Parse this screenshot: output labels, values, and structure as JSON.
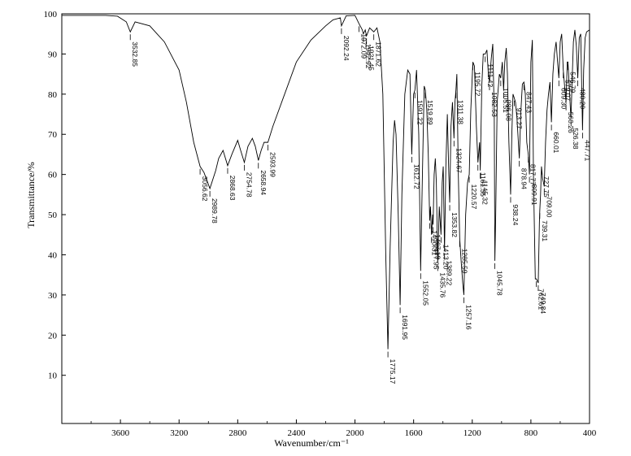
{
  "chart_data": {
    "type": "line",
    "title": "",
    "xlabel": "Wavenumber/cm⁻¹",
    "ylabel": "Transmittance/%",
    "xlim": [
      4000,
      400
    ],
    "ylim": [
      -2,
      100
    ],
    "x_ticks": [
      3600,
      3200,
      2800,
      2400,
      2000,
      1600,
      1200,
      800,
      400
    ],
    "y_ticks": [
      10,
      20,
      30,
      40,
      50,
      60,
      70,
      80,
      90,
      100
    ],
    "grid": false,
    "series": [
      {
        "points": [
          [
            4000,
            99.6
          ],
          [
            3700,
            99.6
          ],
          [
            3620,
            99.4
          ],
          [
            3560,
            98
          ],
          [
            3532.85,
            95.5
          ],
          [
            3500,
            98
          ],
          [
            3400,
            97
          ],
          [
            3300,
            93
          ],
          [
            3200,
            86
          ],
          [
            3150,
            78
          ],
          [
            3100,
            68
          ],
          [
            3056.62,
            62
          ],
          [
            3030,
            60.5
          ],
          [
            2989.78,
            56.5
          ],
          [
            2950,
            61
          ],
          [
            2930,
            64
          ],
          [
            2900,
            66
          ],
          [
            2868.63,
            62.2
          ],
          [
            2840,
            65
          ],
          [
            2800,
            68.5
          ],
          [
            2780,
            66
          ],
          [
            2754.78,
            63
          ],
          [
            2730,
            67
          ],
          [
            2700,
            69
          ],
          [
            2680,
            67
          ],
          [
            2658.94,
            63.5
          ],
          [
            2640,
            66
          ],
          [
            2620,
            68
          ],
          [
            2593.99,
            68
          ],
          [
            2560,
            72
          ],
          [
            2500,
            78
          ],
          [
            2400,
            88
          ],
          [
            2300,
            93.5
          ],
          [
            2200,
            97
          ],
          [
            2150,
            98.5
          ],
          [
            2100,
            99
          ],
          [
            2092.24,
            97
          ],
          [
            2060,
            99.5
          ],
          [
            2000,
            99.6
          ],
          [
            1972.09,
            97.5
          ],
          [
            1950,
            96
          ],
          [
            1942.92,
            95
          ],
          [
            1930,
            96
          ],
          [
            1921.45,
            94.5
          ],
          [
            1900,
            96.5
          ],
          [
            1871.62,
            95.5
          ],
          [
            1850,
            96.5
          ],
          [
            1830,
            93
          ],
          [
            1810,
            80
          ],
          [
            1790,
            40
          ],
          [
            1775.17,
            16.5
          ],
          [
            1760,
            42
          ],
          [
            1740,
            68
          ],
          [
            1730,
            73.5
          ],
          [
            1720,
            70
          ],
          [
            1705,
            50
          ],
          [
            1691.95,
            27.5
          ],
          [
            1680,
            55
          ],
          [
            1660,
            80
          ],
          [
            1640,
            86
          ],
          [
            1625,
            85
          ],
          [
            1612.72,
            65
          ],
          [
            1600,
            80
          ],
          [
            1591.22,
            81
          ],
          [
            1580,
            86
          ],
          [
            1565,
            70
          ],
          [
            1552.05,
            36
          ],
          [
            1540,
            60
          ],
          [
            1528,
            82
          ],
          [
            1519.89,
            81
          ],
          [
            1510,
            76
          ],
          [
            1500,
            65
          ],
          [
            1490.31,
            48.5
          ],
          [
            1485,
            52
          ],
          [
            1477.95,
            45
          ],
          [
            1470,
            50
          ],
          [
            1467.19,
            47.5
          ],
          [
            1460,
            60
          ],
          [
            1452,
            64
          ],
          [
            1445,
            58
          ],
          [
            1435.76,
            38
          ],
          [
            1425,
            52
          ],
          [
            1413.2,
            45
          ],
          [
            1405,
            58
          ],
          [
            1398,
            62
          ],
          [
            1389.22,
            41
          ],
          [
            1380,
            62
          ],
          [
            1370,
            75
          ],
          [
            1360,
            60
          ],
          [
            1353.82,
            53
          ],
          [
            1345,
            72
          ],
          [
            1335,
            78
          ],
          [
            1324.67,
            69
          ],
          [
            1318,
            78
          ],
          [
            1311.38,
            81
          ],
          [
            1305,
            85
          ],
          [
            1295,
            60
          ],
          [
            1285.59,
            44
          ],
          [
            1275,
            38
          ],
          [
            1265,
            33
          ],
          [
            1257.16,
            30
          ],
          [
            1245,
            50
          ],
          [
            1232,
            58
          ],
          [
            1220.57,
            60
          ],
          [
            1210,
            76
          ],
          [
            1195.72,
            88
          ],
          [
            1185,
            87
          ],
          [
            1172,
            72
          ],
          [
            1161.35,
            63
          ],
          [
            1150,
            68
          ],
          [
            1145.32,
            61
          ],
          [
            1135,
            82
          ],
          [
            1125,
            90
          ],
          [
            1111.42,
            90
          ],
          [
            1100,
            91
          ],
          [
            1090,
            85
          ],
          [
            1082.53,
            83
          ],
          [
            1070,
            89
          ],
          [
            1060,
            92.5
          ],
          [
            1050,
            75
          ],
          [
            1045.78,
            38.5
          ],
          [
            1040,
            50
          ],
          [
            1030,
            78
          ],
          [
            1015,
            85
          ],
          [
            1005.51,
            84
          ],
          [
            995,
            88
          ],
          [
            986.08,
            81
          ],
          [
            978,
            88
          ],
          [
            968,
            91.5
          ],
          [
            960,
            85
          ],
          [
            950,
            68
          ],
          [
            938.24,
            55
          ],
          [
            930,
            70
          ],
          [
            922,
            80
          ],
          [
            913.27,
            79
          ],
          [
            905,
            78
          ],
          [
            895,
            74
          ],
          [
            878.94,
            64
          ],
          [
            868,
            76
          ],
          [
            858,
            82.5
          ],
          [
            847.43,
            83
          ],
          [
            838,
            80
          ],
          [
            828,
            68
          ],
          [
            817.77,
            65
          ],
          [
            809.91,
            60
          ],
          [
            800,
            88
          ],
          [
            790,
            93.5
          ],
          [
            782.61,
            60
          ],
          [
            770,
            34
          ],
          [
            762.61,
            34
          ],
          [
            749.84,
            33
          ],
          [
            742,
            48
          ],
          [
            739.31,
            51
          ],
          [
            734,
            55
          ],
          [
            727.75,
            62
          ],
          [
            720,
            59
          ],
          [
            709,
            57
          ],
          [
            700,
            68
          ],
          [
            690,
            76
          ],
          [
            680,
            80
          ],
          [
            670,
            83
          ],
          [
            660.01,
            73
          ],
          [
            650,
            85
          ],
          [
            640,
            90
          ],
          [
            628,
            93
          ],
          [
            620,
            89
          ],
          [
            609.3,
            84
          ],
          [
            600,
            93
          ],
          [
            590,
            95
          ],
          [
            579.07,
            86
          ],
          [
            570,
            82
          ],
          [
            560.26,
            78
          ],
          [
            552,
            88
          ],
          [
            546.79,
            88
          ],
          [
            540,
            83
          ],
          [
            530,
            76
          ],
          [
            526.38,
            74
          ],
          [
            520,
            82
          ],
          [
            510,
            93
          ],
          [
            500,
            96
          ],
          [
            490,
            92
          ],
          [
            480.2,
            84
          ],
          [
            470,
            94
          ],
          [
            460,
            95
          ],
          [
            447.71,
            71
          ],
          [
            440,
            86
          ],
          [
            430,
            94
          ],
          [
            420,
            95.5
          ],
          [
            400,
            96
          ]
        ]
      }
    ],
    "peak_labels": [
      {
        "wn": 3532.85,
        "text": "3532.85"
      },
      {
        "wn": 3056.62,
        "text": "3056.62"
      },
      {
        "wn": 2989.78,
        "text": "2989.78"
      },
      {
        "wn": 2868.63,
        "text": "2868.63"
      },
      {
        "wn": 2754.78,
        "text": "2754.78"
      },
      {
        "wn": 2658.94,
        "text": "2658.94"
      },
      {
        "wn": 2593.99,
        "text": "2593.99"
      },
      {
        "wn": 2092.24,
        "text": "2092.24"
      },
      {
        "wn": 1972.09,
        "text": "1972.09"
      },
      {
        "wn": 1942.92,
        "text": "1942.92"
      },
      {
        "wn": 1921.45,
        "text": "1921.45"
      },
      {
        "wn": 1871.62,
        "text": "1871.62"
      },
      {
        "wn": 1775.17,
        "text": "1775.17"
      },
      {
        "wn": 1691.95,
        "text": "1691.95"
      },
      {
        "wn": 1612.72,
        "text": "1612.72"
      },
      {
        "wn": 1591.22,
        "text": "1591.22"
      },
      {
        "wn": 1552.05,
        "text": "1552.05"
      },
      {
        "wn": 1519.89,
        "text": "1519.89"
      },
      {
        "wn": 1490.31,
        "text": "1490.31"
      },
      {
        "wn": 1477.95,
        "text": "1477.95"
      },
      {
        "wn": 1467.19,
        "text": "1467.19"
      },
      {
        "wn": 1435.76,
        "text": "1435.76"
      },
      {
        "wn": 1413.2,
        "text": "1413.20"
      },
      {
        "wn": 1389.22,
        "text": "1389.22"
      },
      {
        "wn": 1353.82,
        "text": "1353.82"
      },
      {
        "wn": 1324.67,
        "text": "1324.67"
      },
      {
        "wn": 1311.38,
        "text": "1311.38"
      },
      {
        "wn": 1285.59,
        "text": "1285.59"
      },
      {
        "wn": 1257.16,
        "text": "1257.16"
      },
      {
        "wn": 1220.57,
        "text": "1220.57"
      },
      {
        "wn": 1195.72,
        "text": "1195.72"
      },
      {
        "wn": 1161.35,
        "text": "1161.35"
      },
      {
        "wn": 1145.32,
        "text": "1145.32"
      },
      {
        "wn": 1111.42,
        "text": "1111.42"
      },
      {
        "wn": 1082.53,
        "text": "1082.53"
      },
      {
        "wn": 1045.78,
        "text": "1045.78"
      },
      {
        "wn": 1005.51,
        "text": "1005.51"
      },
      {
        "wn": 986.08,
        "text": "986.08"
      },
      {
        "wn": 938.24,
        "text": "938.24"
      },
      {
        "wn": 913.27,
        "text": "913.27"
      },
      {
        "wn": 878.94,
        "text": "878.94"
      },
      {
        "wn": 847.43,
        "text": "847.43"
      },
      {
        "wn": 817.77,
        "text": "817.77"
      },
      {
        "wn": 809.91,
        "text": "809.91"
      },
      {
        "wn": 762.61,
        "text": "762.61"
      },
      {
        "wn": 749.84,
        "text": "749.84"
      },
      {
        "wn": 739.31,
        "text": "739.31"
      },
      {
        "wn": 727.75,
        "text": "727.75"
      },
      {
        "wn": 709.0,
        "text": "709.00"
      },
      {
        "wn": 660.01,
        "text": "660.01"
      },
      {
        "wn": 609.3,
        "text": "609.30"
      },
      {
        "wn": 579.07,
        "text": "579.07"
      },
      {
        "wn": 560.26,
        "text": "560.26"
      },
      {
        "wn": 546.79,
        "text": "546.79"
      },
      {
        "wn": 526.38,
        "text": "526.38"
      },
      {
        "wn": 480.2,
        "text": "480.20"
      },
      {
        "wn": 447.71,
        "text": "447.71"
      }
    ],
    "line_color": "#000000"
  }
}
